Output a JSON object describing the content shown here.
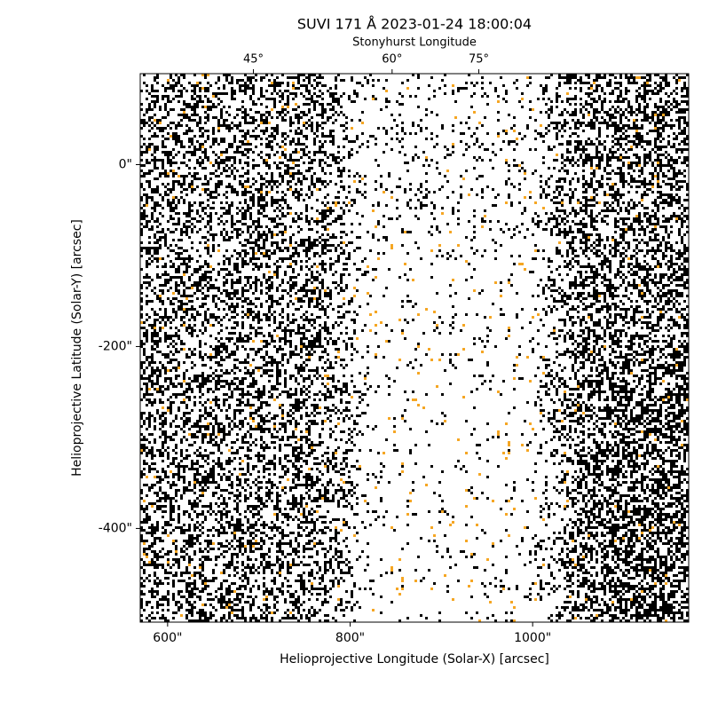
{
  "chart_data": {
    "type": "image",
    "title": "SUVI 171 Å 2023-01-24 18:00:04",
    "xlabel": "Helioprojective Longitude (Solar-X) [arcsec]",
    "ylabel": "Helioprojective Latitude (Solar-Y) [arcsec]",
    "x2label": "Stonyhurst Longitude",
    "xlim": [
      570,
      1171
    ],
    "ylim": [
      -503,
      100
    ],
    "xticks": [
      {
        "value": 600,
        "label": "600\""
      },
      {
        "value": 800,
        "label": "800\""
      },
      {
        "value": 1000,
        "label": "1000\""
      }
    ],
    "yticks": [
      {
        "value": 0,
        "label": "0\""
      },
      {
        "value": -200,
        "label": "-200\""
      },
      {
        "value": -400,
        "label": "-400\""
      }
    ],
    "x2ticks": [
      {
        "value": 694,
        "label": "45°"
      },
      {
        "value": 846,
        "label": "60°"
      },
      {
        "value": 941,
        "label": "75°"
      }
    ],
    "colors": [
      "#000000",
      "#f5a623"
    ]
  }
}
